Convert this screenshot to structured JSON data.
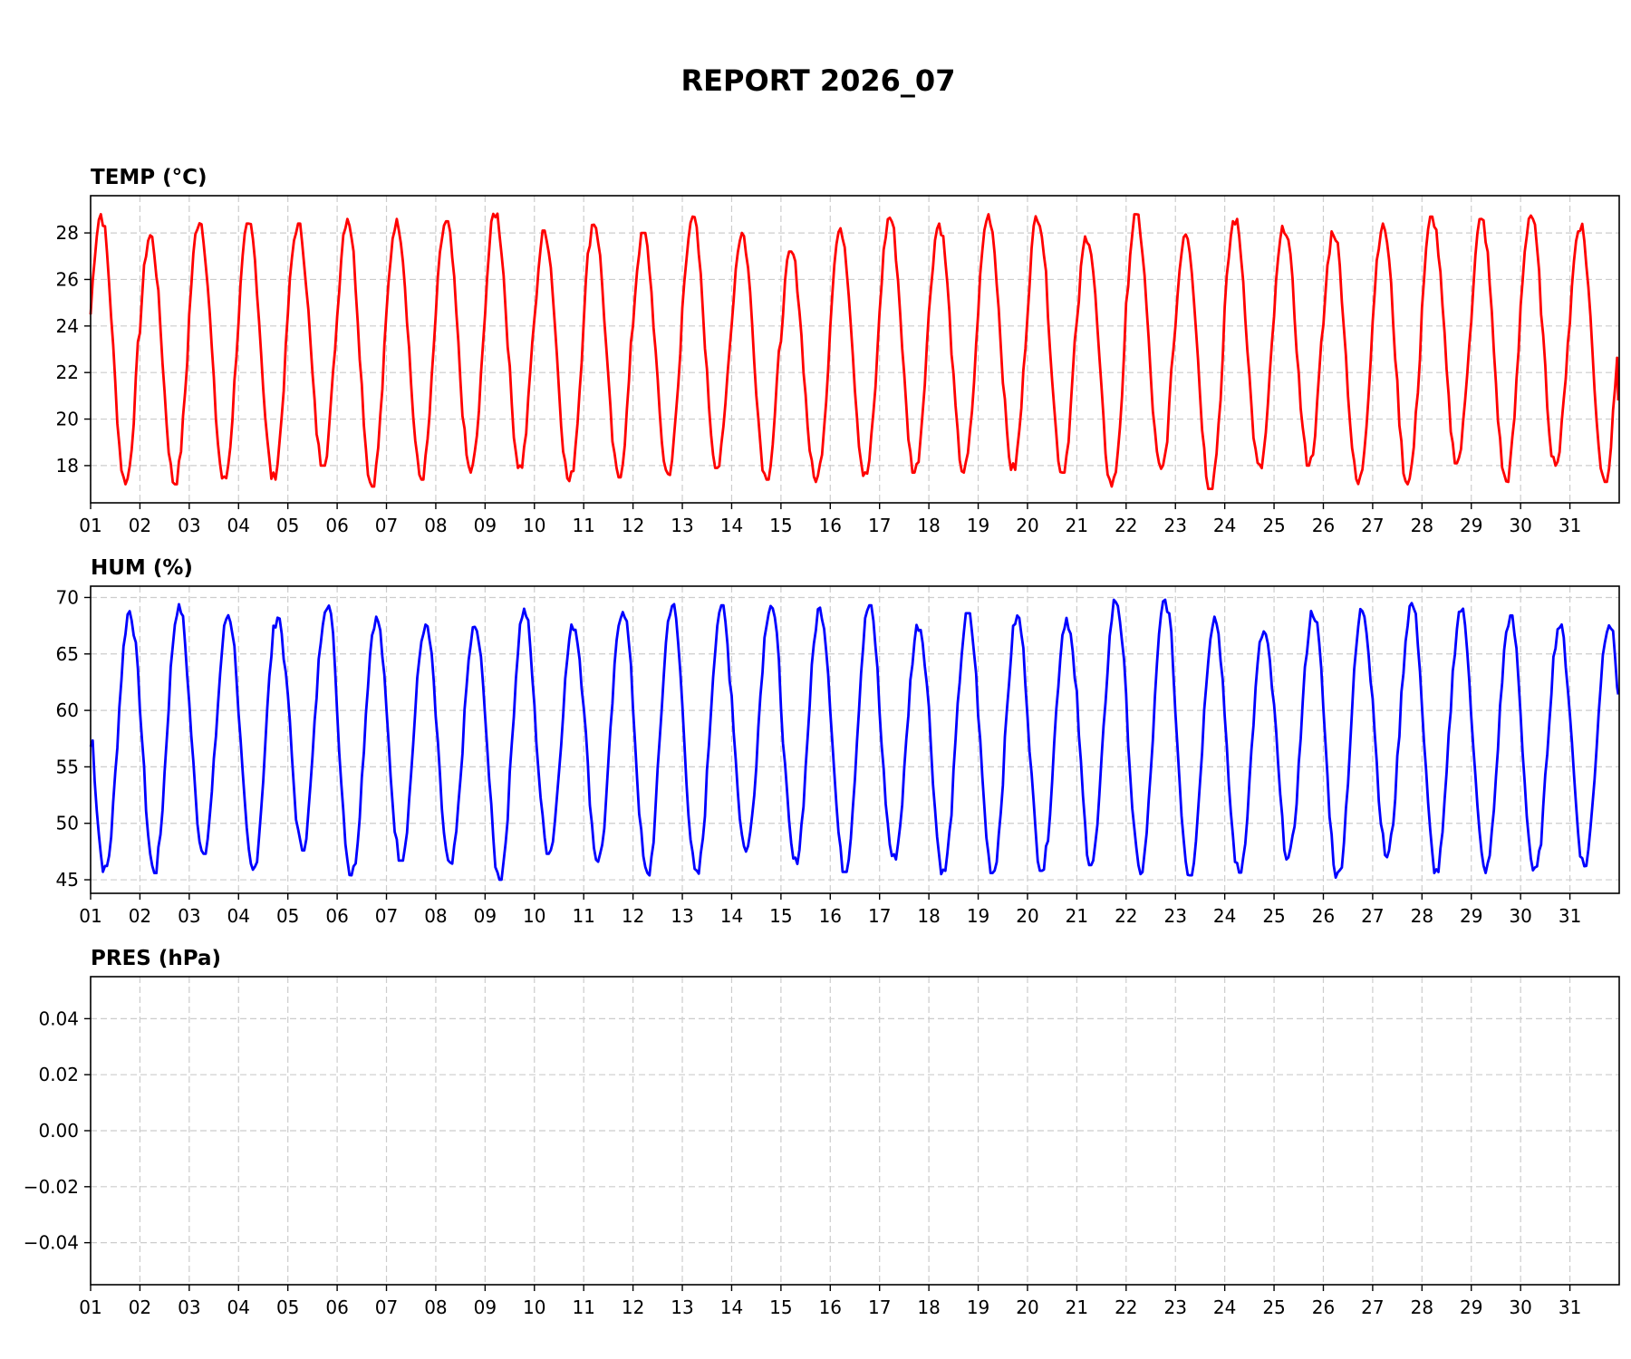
{
  "figure": {
    "title": "REPORT 2026_07"
  },
  "chart_data": [
    {
      "type": "line",
      "title": "TEMP (°C)",
      "xlabel": "",
      "ylabel": "",
      "x_unit": "day of month (2026-07), hourly samples",
      "x_tick_labels": [
        "01",
        "02",
        "03",
        "04",
        "05",
        "06",
        "07",
        "08",
        "09",
        "10",
        "11",
        "12",
        "13",
        "14",
        "15",
        "16",
        "17",
        "18",
        "19",
        "20",
        "21",
        "22",
        "23",
        "24",
        "25",
        "26",
        "27",
        "28",
        "29",
        "30",
        "31"
      ],
      "xlim": [
        1,
        32
      ],
      "ylim": [
        16.4,
        29.6
      ],
      "y_ticks": [
        18,
        20,
        22,
        24,
        26,
        28
      ],
      "y_tick_labels": [
        "18",
        "20",
        "22",
        "24",
        "26",
        "28"
      ],
      "grid": true,
      "series": [
        {
          "color": "#ff0000",
          "pattern": "daily cycle (approx.)",
          "daily_min": [
            17.2,
            17.2,
            17.3,
            17.4,
            18.0,
            17.1,
            17.4,
            17.7,
            17.9,
            17.3,
            17.5,
            17.6,
            17.9,
            17.4,
            17.3,
            17.5,
            17.7,
            17.7,
            17.8,
            17.7,
            17.1,
            17.7,
            17.0,
            17.8,
            18.0,
            17.2,
            17.2,
            18.1,
            17.3,
            18.0,
            17.3
          ],
          "daily_max": [
            28.8,
            27.9,
            28.6,
            28.4,
            28.4,
            28.7,
            28.6,
            28.5,
            28.9,
            28.1,
            28.5,
            28.0,
            28.7,
            28.0,
            27.2,
            28.2,
            28.7,
            28.4,
            28.8,
            28.8,
            27.9,
            28.8,
            28.1,
            28.6,
            28.3,
            28.1,
            28.4,
            28.7,
            28.6,
            28.8,
            28.4
          ],
          "end_value": 20.8
        }
      ]
    },
    {
      "type": "line",
      "title": "HUM (%)",
      "xlabel": "",
      "ylabel": "",
      "x_unit": "day of month (2026-07), hourly samples",
      "x_tick_labels": [
        "01",
        "02",
        "03",
        "04",
        "05",
        "06",
        "07",
        "08",
        "09",
        "10",
        "11",
        "12",
        "13",
        "14",
        "15",
        "16",
        "17",
        "18",
        "19",
        "20",
        "21",
        "22",
        "23",
        "24",
        "25",
        "26",
        "27",
        "28",
        "29",
        "30",
        "31"
      ],
      "xlim": [
        1,
        32
      ],
      "ylim": [
        43.8,
        71.0
      ],
      "y_ticks": [
        45,
        50,
        55,
        60,
        65,
        70
      ],
      "y_tick_labels": [
        "45",
        "50",
        "55",
        "60",
        "65",
        "70"
      ],
      "grid": true,
      "series": [
        {
          "color": "#0000ff",
          "pattern": "daily cycle (approx.)",
          "daily_max": [
            68.8,
            69.4,
            68.5,
            68.4,
            69.6,
            68.3,
            67.6,
            67.4,
            69.0,
            67.6,
            69.1,
            69.4,
            69.3,
            69.5,
            69.1,
            69.3,
            67.6,
            68.6,
            68.4,
            68.2,
            69.8,
            69.8,
            68.3,
            67.0,
            68.8,
            69.0,
            69.5,
            69.0,
            68.4,
            67.6,
            67.9
          ],
          "daily_min": [
            45.7,
            45.6,
            47.3,
            45.7,
            47.6,
            45.4,
            46.7,
            46.0,
            45.0,
            47.3,
            46.6,
            45.3,
            45.2,
            47.5,
            46.4,
            45.7,
            46.8,
            45.5,
            45.6,
            45.8,
            46.3,
            45.5,
            45.4,
            45.6,
            46.8,
            45.2,
            47.0,
            45.6,
            45.6,
            45.5,
            46.2
          ],
          "start_value": 56.8,
          "end_value": 61.4
        }
      ]
    },
    {
      "type": "line",
      "title": "PRES (hPa)",
      "xlabel": "",
      "ylabel": "",
      "x_tick_labels": [
        "01",
        "02",
        "03",
        "04",
        "05",
        "06",
        "07",
        "08",
        "09",
        "10",
        "11",
        "12",
        "13",
        "14",
        "15",
        "16",
        "17",
        "18",
        "19",
        "20",
        "21",
        "22",
        "23",
        "24",
        "25",
        "26",
        "27",
        "28",
        "29",
        "30",
        "31"
      ],
      "xlim": [
        1,
        32
      ],
      "ylim": [
        -0.055,
        0.055
      ],
      "y_ticks": [
        -0.04,
        -0.02,
        0.0,
        0.02,
        0.04
      ],
      "y_tick_labels": [
        "−0.04",
        "−0.02",
        "0.00",
        "0.02",
        "0.04"
      ],
      "grid": true,
      "series": []
    }
  ]
}
